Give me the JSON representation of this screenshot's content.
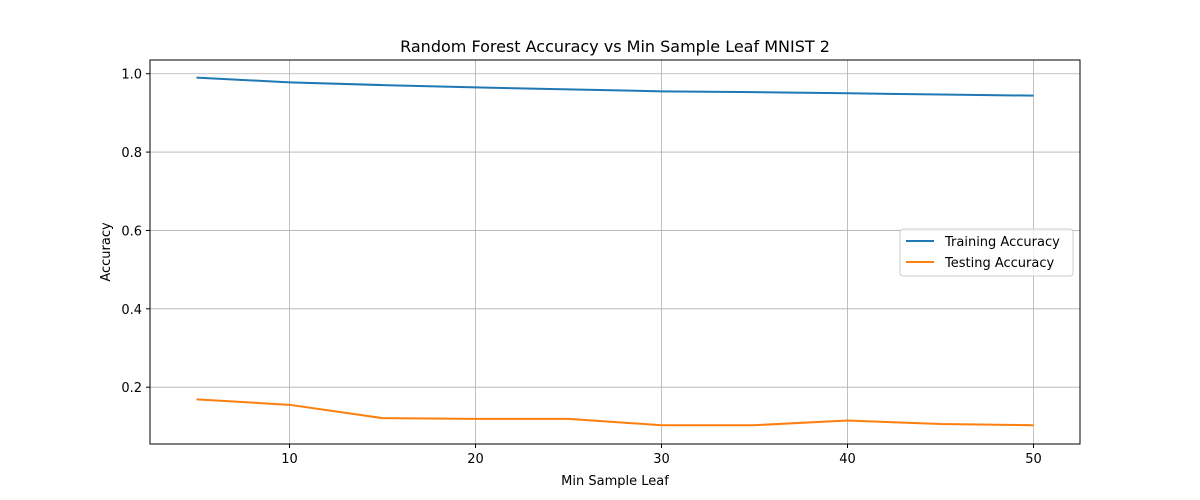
{
  "chart_data": {
    "type": "line",
    "title": "Random Forest Accuracy vs Min Sample Leaf MNIST 2",
    "xlabel": "Min Sample Leaf",
    "ylabel": "Accuracy",
    "xlim": [
      2.5,
      52.5
    ],
    "ylim": [
      0.055,
      1.035
    ],
    "xticks": [
      10,
      20,
      30,
      40,
      50
    ],
    "yticks": [
      0.2,
      0.4,
      0.6,
      0.8,
      1.0
    ],
    "ytick_labels": [
      "0.2",
      "0.4",
      "0.6",
      "0.8",
      "1.0"
    ],
    "grid": true,
    "legend_position": "center-right",
    "x": [
      5,
      10,
      15,
      20,
      25,
      30,
      35,
      40,
      45,
      50
    ],
    "series": [
      {
        "name": "Training Accuracy",
        "color": "#1f77b4",
        "values": [
          0.99,
          0.978,
          0.971,
          0.965,
          0.96,
          0.955,
          0.953,
          0.95,
          0.947,
          0.944
        ]
      },
      {
        "name": "Testing Accuracy",
        "color": "#ff7f0e",
        "values": [
          0.169,
          0.155,
          0.121,
          0.119,
          0.119,
          0.103,
          0.103,
          0.115,
          0.106,
          0.103
        ]
      }
    ]
  }
}
